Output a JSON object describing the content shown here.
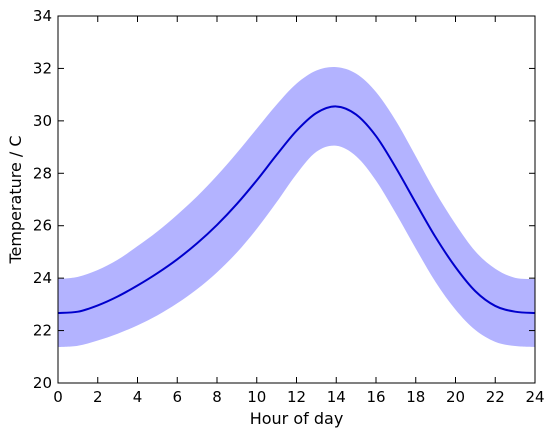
{
  "chart_data": {
    "type": "line",
    "title": "",
    "xlabel": "Hour of day",
    "ylabel": "Temperature / C",
    "xlim": [
      0,
      24
    ],
    "ylim": [
      20,
      34
    ],
    "xticks": [
      0,
      2,
      4,
      6,
      8,
      10,
      12,
      14,
      16,
      18,
      20,
      22,
      24
    ],
    "yticks": [
      20,
      22,
      24,
      26,
      28,
      30,
      32,
      34
    ],
    "grid": false,
    "colors": {
      "line": "#0000cc",
      "band": "#b3b3ff"
    },
    "series": [
      {
        "x": [
          0,
          1,
          2,
          3,
          4,
          5,
          6,
          7,
          8,
          9,
          10,
          11,
          12,
          13,
          14,
          15,
          16,
          17,
          18,
          19,
          20,
          21,
          22,
          23,
          24
        ],
        "mean": [
          22.67,
          22.72,
          22.96,
          23.3,
          23.72,
          24.19,
          24.72,
          25.33,
          26.03,
          26.83,
          27.73,
          28.7,
          29.62,
          30.3,
          30.55,
          30.24,
          29.42,
          28.21,
          26.87,
          25.56,
          24.42,
          23.5,
          22.94,
          22.72,
          22.67
        ],
        "lower": [
          21.37,
          21.42,
          21.62,
          21.88,
          22.2,
          22.58,
          23.04,
          23.58,
          24.22,
          24.98,
          25.88,
          26.9,
          27.97,
          28.82,
          29.05,
          28.65,
          27.72,
          26.47,
          25.13,
          23.85,
          22.8,
          22.02,
          21.57,
          21.41,
          21.37
        ],
        "upper": [
          23.97,
          24.05,
          24.31,
          24.7,
          25.22,
          25.78,
          26.42,
          27.12,
          27.91,
          28.78,
          29.7,
          30.62,
          31.42,
          31.92,
          32.05,
          31.8,
          31.1,
          30.0,
          28.65,
          27.27,
          26.06,
          25.02,
          24.36,
          24.01,
          23.97
        ]
      }
    ]
  }
}
